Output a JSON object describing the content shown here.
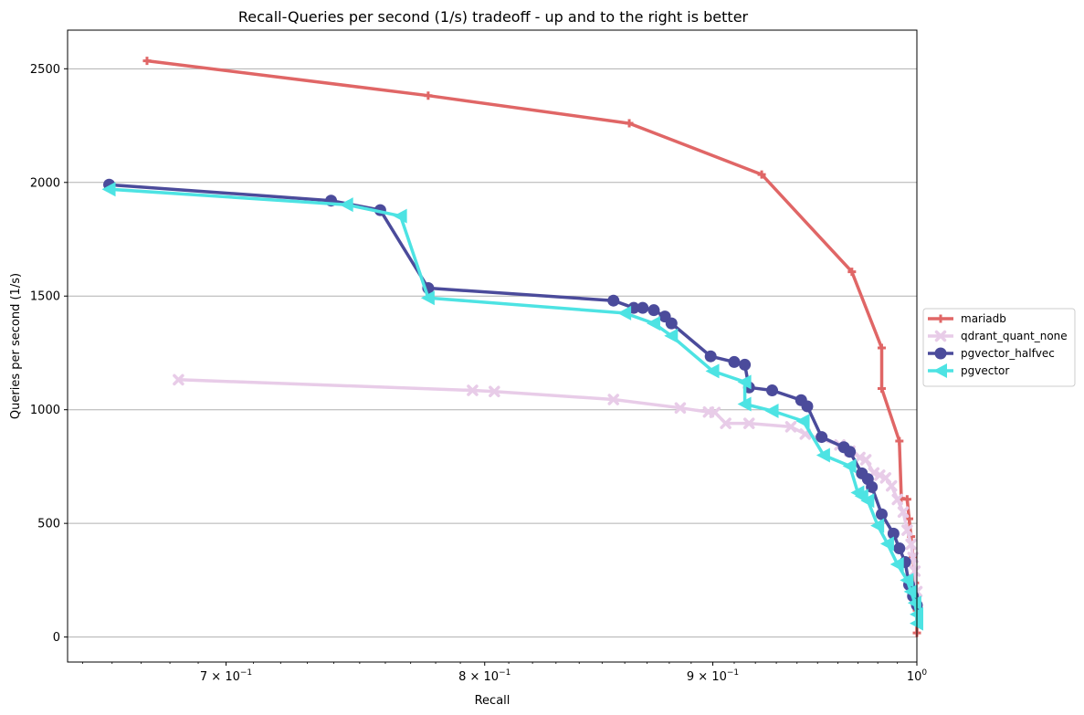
{
  "chart_data": {
    "type": "line",
    "title": "Recall-Queries per second (1/s) tradeoff - up and to the right is better",
    "xlabel": "Recall",
    "ylabel": "Queries per second (1/s)",
    "xscale": "log",
    "xlim": [
      0.645,
      1.0
    ],
    "ylim": [
      -110,
      2670
    ],
    "x_ticks": [
      {
        "value": 0.7,
        "label": "7 × 10",
        "exp": "−1"
      },
      {
        "value": 0.8,
        "label": "8 × 10",
        "exp": "−1"
      },
      {
        "value": 0.9,
        "label": "9 × 10",
        "exp": "−1"
      },
      {
        "value": 1.0,
        "label": "10",
        "exp": "0"
      }
    ],
    "y_ticks": [
      0,
      500,
      1000,
      1500,
      2000,
      2500
    ],
    "y_grid": true,
    "legend_position": "right, outside plot",
    "series": [
      {
        "name": "mariadb",
        "color": "#e06666",
        "marker": "plus",
        "points": [
          [
            0.672,
            2535
          ],
          [
            0.777,
            2382
          ],
          [
            0.862,
            2260
          ],
          [
            0.923,
            2035
          ],
          [
            0.967,
            1607
          ],
          [
            0.982,
            1272
          ],
          [
            0.982,
            1093
          ],
          [
            0.991,
            862
          ],
          [
            0.992,
            610
          ],
          [
            0.995,
            606
          ],
          [
            0.996,
            520
          ],
          [
            0.997,
            442
          ],
          [
            0.998,
            352
          ],
          [
            0.999,
            238
          ],
          [
            1.0,
            118
          ],
          [
            1.0,
            18
          ]
        ]
      },
      {
        "name": "qdrant_quant_none",
        "color": "#e8cce8",
        "marker": "x",
        "points": [
          [
            0.683,
            1132
          ],
          [
            0.795,
            1085
          ],
          [
            0.804,
            1080
          ],
          [
            0.855,
            1045
          ],
          [
            0.885,
            1008
          ],
          [
            0.898,
            990
          ],
          [
            0.901,
            988
          ],
          [
            0.906,
            940
          ],
          [
            0.917,
            940
          ],
          [
            0.937,
            925
          ],
          [
            0.944,
            893
          ],
          [
            0.961,
            845
          ],
          [
            0.966,
            818
          ],
          [
            0.971,
            790
          ],
          [
            0.974,
            780
          ],
          [
            0.978,
            722
          ],
          [
            0.981,
            712
          ],
          [
            0.984,
            700
          ],
          [
            0.987,
            665
          ],
          [
            0.99,
            605
          ],
          [
            0.993,
            550
          ],
          [
            0.995,
            470
          ],
          [
            0.997,
            408
          ],
          [
            0.998,
            350
          ],
          [
            0.999,
            290
          ],
          [
            1.0,
            200
          ]
        ]
      },
      {
        "name": "pgvector_halfvec",
        "color": "#4b4b9b",
        "marker": "circle",
        "points": [
          [
            0.659,
            1990
          ],
          [
            0.739,
            1920
          ],
          [
            0.758,
            1878
          ],
          [
            0.777,
            1535
          ],
          [
            0.855,
            1480
          ],
          [
            0.864,
            1448
          ],
          [
            0.868,
            1448
          ],
          [
            0.873,
            1438
          ],
          [
            0.878,
            1410
          ],
          [
            0.881,
            1380
          ],
          [
            0.899,
            1235
          ],
          [
            0.91,
            1210
          ],
          [
            0.915,
            1198
          ],
          [
            0.917,
            1098
          ],
          [
            0.928,
            1085
          ],
          [
            0.942,
            1042
          ],
          [
            0.945,
            1015
          ],
          [
            0.952,
            880
          ],
          [
            0.963,
            835
          ],
          [
            0.966,
            815
          ],
          [
            0.972,
            720
          ],
          [
            0.975,
            695
          ],
          [
            0.977,
            660
          ],
          [
            0.982,
            540
          ],
          [
            0.988,
            455
          ],
          [
            0.991,
            390
          ],
          [
            0.994,
            330
          ],
          [
            0.996,
            230
          ],
          [
            0.998,
            180
          ],
          [
            1.0,
            140
          ]
        ]
      },
      {
        "name": "pgvector",
        "color": "#4de3e3",
        "marker": "triangle-left",
        "points": [
          [
            0.659,
            1970
          ],
          [
            0.745,
            1902
          ],
          [
            0.766,
            1852
          ],
          [
            0.777,
            1492
          ],
          [
            0.86,
            1425
          ],
          [
            0.873,
            1380
          ],
          [
            0.881,
            1325
          ],
          [
            0.9,
            1170
          ],
          [
            0.915,
            1122
          ],
          [
            0.915,
            1025
          ],
          [
            0.928,
            995
          ],
          [
            0.943,
            950
          ],
          [
            0.953,
            800
          ],
          [
            0.966,
            752
          ],
          [
            0.97,
            635
          ],
          [
            0.972,
            620
          ],
          [
            0.975,
            600
          ],
          [
            0.98,
            490
          ],
          [
            0.985,
            410
          ],
          [
            0.99,
            320
          ],
          [
            0.995,
            250
          ],
          [
            0.997,
            200
          ],
          [
            0.999,
            150
          ],
          [
            1.0,
            100
          ],
          [
            1.0,
            60
          ]
        ]
      }
    ]
  }
}
